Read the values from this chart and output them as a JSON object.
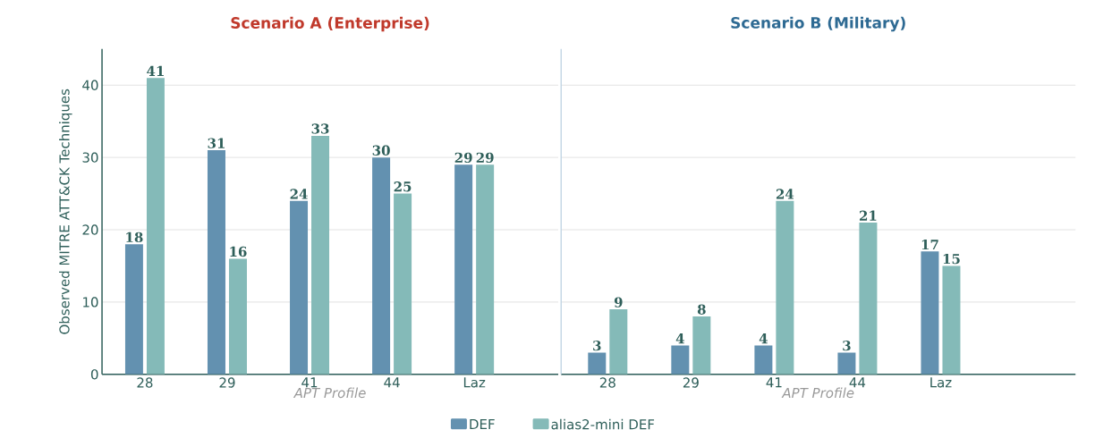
{
  "chart_data": [
    {
      "type": "bar",
      "title": "Scenario A (Enterprise)",
      "xlabel": "APT Profile",
      "ylabel": "Observed MITRE ATT&CK Techniques",
      "categories": [
        "28",
        "29",
        "41",
        "44",
        "Laz"
      ],
      "series": [
        {
          "name": "DEF",
          "color": "#6391b0",
          "values": [
            18,
            31,
            24,
            30,
            29
          ]
        },
        {
          "name": "alias2-mini DEF",
          "color": "#84bab8",
          "values": [
            41,
            16,
            33,
            25,
            29
          ]
        }
      ],
      "ylim": [
        0,
        45
      ],
      "yticks": [
        0,
        10,
        20,
        30,
        40
      ],
      "grid": "y",
      "data_labels": true,
      "legend": "bottom"
    },
    {
      "type": "bar",
      "title": "Scenario B (Military)",
      "xlabel": "APT Profile",
      "categories": [
        "28",
        "29",
        "41",
        "44",
        "Laz"
      ],
      "series": [
        {
          "color": "#6391b0",
          "values": [
            3,
            4,
            4,
            3,
            17
          ]
        },
        {
          "color": "#84bab8",
          "values": [
            9,
            8,
            24,
            21,
            15
          ]
        }
      ],
      "ylim": [
        0,
        45
      ],
      "yticks": [
        0,
        10,
        20,
        30,
        40
      ],
      "grid": "y",
      "data_labels": true,
      "tick_labels": "x"
    }
  ]
}
